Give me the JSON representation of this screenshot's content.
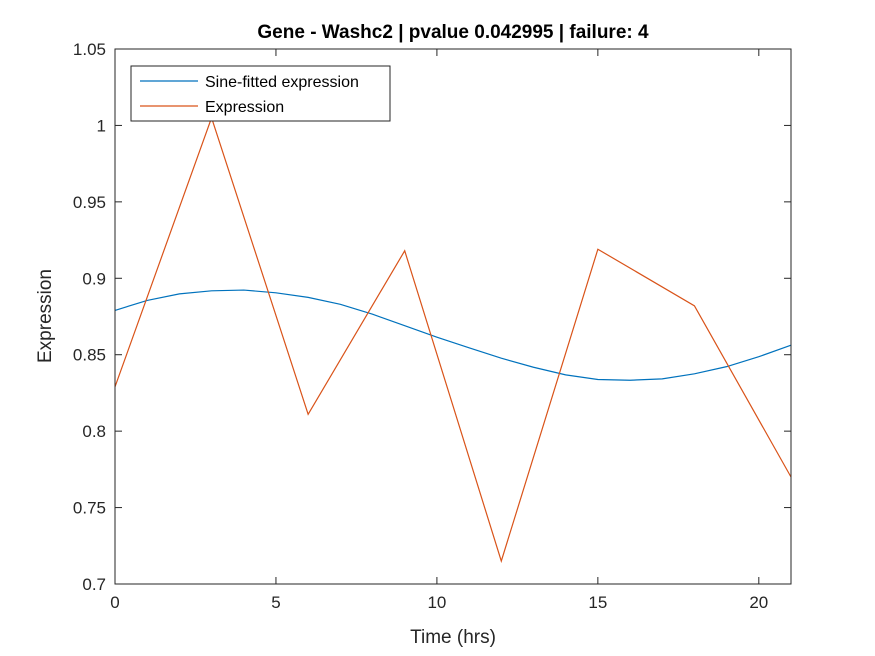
{
  "chart_data": {
    "type": "line",
    "title": "Gene - Washc2 | pvalue 0.042995 | failure: 4",
    "xlabel": "Time (hrs)",
    "ylabel": "Expression",
    "xlim": [
      0,
      21
    ],
    "ylim": [
      0.7,
      1.05
    ],
    "xticks": [
      0,
      5,
      10,
      15,
      20
    ],
    "xtick_labels": [
      "0",
      "5",
      "10",
      "15",
      "20"
    ],
    "yticks": [
      0.7,
      0.75,
      0.8,
      0.85,
      0.9,
      0.95,
      1.0,
      1.05
    ],
    "ytick_labels": [
      "0.7",
      "0.75",
      "0.8",
      "0.85",
      "0.9",
      "0.95",
      "1",
      "1.05"
    ],
    "grid": false,
    "legend_position": "top-left",
    "series": [
      {
        "name": "Sine-fitted expression",
        "color": "#0072BD",
        "x": [
          0,
          1,
          2,
          3,
          4,
          5,
          6,
          7,
          8,
          9,
          10,
          11,
          12,
          13,
          14,
          15,
          16,
          17,
          18,
          19,
          20,
          21
        ],
        "values": [
          0.879,
          0.8855,
          0.8898,
          0.8918,
          0.8923,
          0.8905,
          0.8875,
          0.883,
          0.8765,
          0.869,
          0.8615,
          0.8545,
          0.8477,
          0.8418,
          0.8368,
          0.8338,
          0.8333,
          0.8342,
          0.8375,
          0.8422,
          0.8487,
          0.8562
        ]
      },
      {
        "name": "Expression",
        "color": "#D95319",
        "x": [
          0,
          3,
          6,
          9,
          12,
          15,
          18,
          21
        ],
        "values": [
          0.829,
          1.005,
          0.811,
          0.918,
          0.715,
          0.919,
          0.882,
          0.77
        ]
      }
    ]
  }
}
